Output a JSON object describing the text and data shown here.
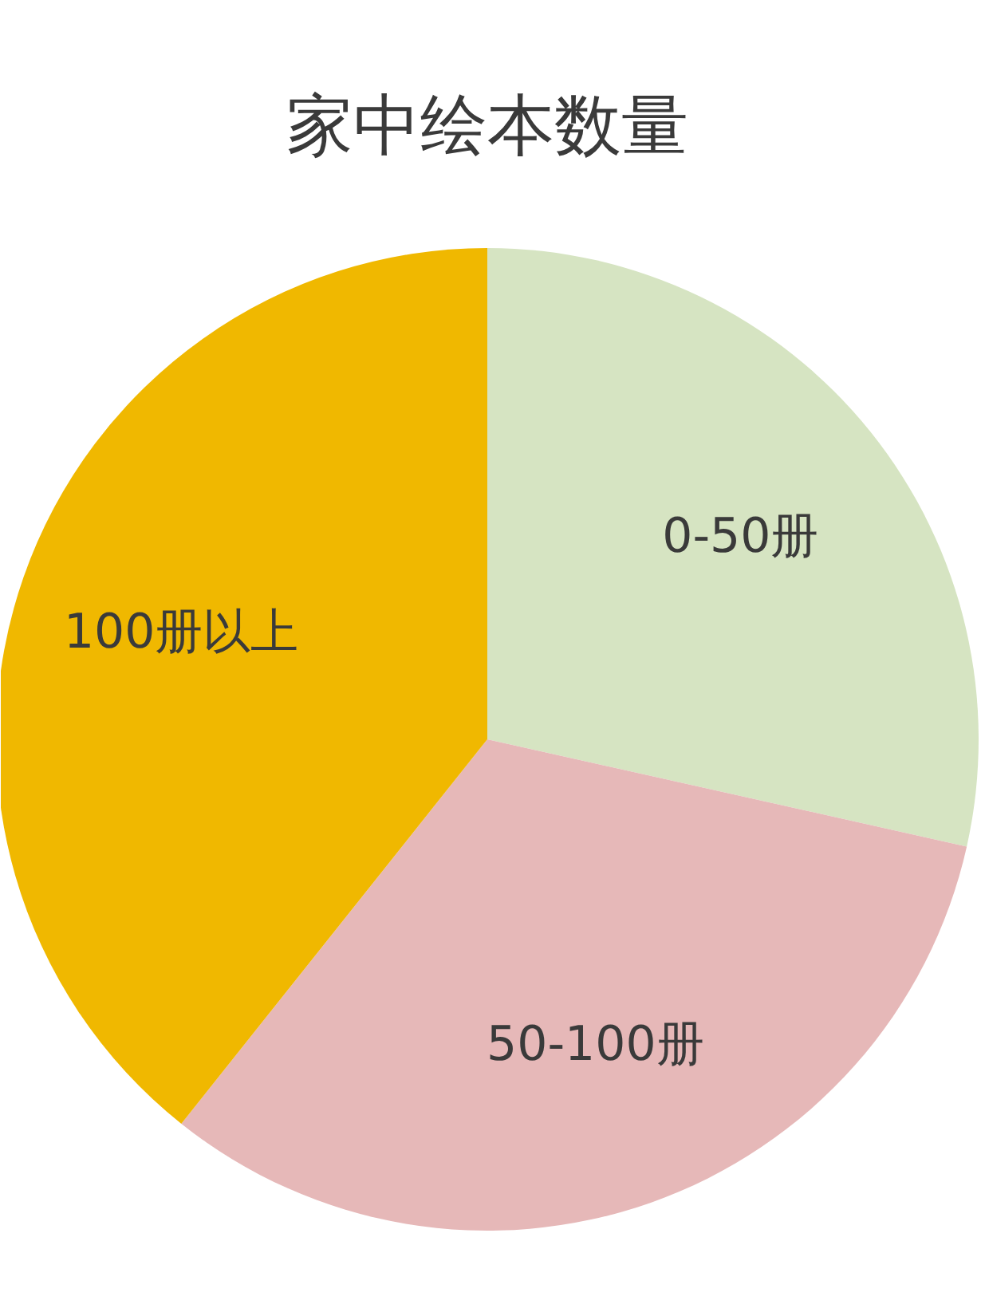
{
  "chart_data": {
    "type": "pie",
    "title": "家中绘本数量",
    "categories": [
      "0-50册",
      "50-100册",
      "100册以上"
    ],
    "values": [
      28.5,
      32.2,
      39.3
    ],
    "colors": [
      "#d6e4c2",
      "#e6b8b8",
      "#f0b800"
    ]
  }
}
